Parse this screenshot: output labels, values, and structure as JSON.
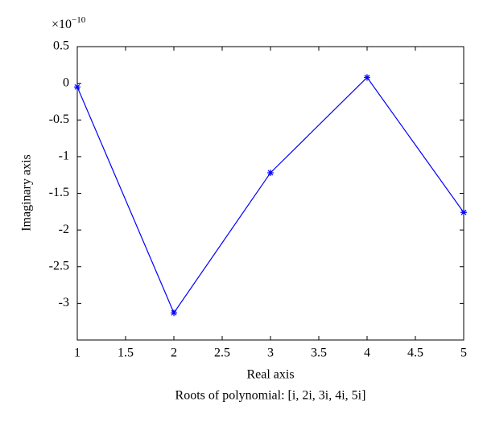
{
  "chart_data": {
    "type": "line",
    "x_label": "Real axis",
    "y_label": "Imaginary axis",
    "caption": "Roots of polynomial: [i, 2i, 3i, 4i, 5i]",
    "y_multiplier": "×10",
    "y_exponent": "−10",
    "x": [
      1,
      2,
      3,
      4,
      5
    ],
    "series": [
      {
        "color": "#0000ff",
        "marker": "asterisk",
        "values": [
          -0.05,
          -3.13,
          -1.22,
          0.08,
          -1.76
        ]
      }
    ],
    "xlim": [
      1,
      5
    ],
    "xticks": [
      1,
      1.5,
      2,
      2.5,
      3,
      3.5,
      4,
      4.5,
      5
    ],
    "ylim": [
      -3.5,
      0.5
    ],
    "yticks": [
      0.5,
      0,
      -0.5,
      -1,
      -1.5,
      -2,
      -2.5,
      -3
    ],
    "grid": false
  }
}
